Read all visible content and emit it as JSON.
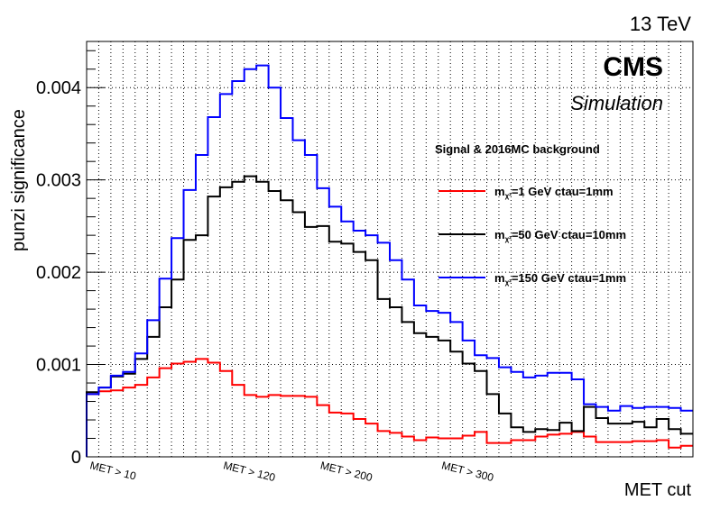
{
  "chart_data": {
    "type": "line",
    "step": true,
    "energy_label": "13 TeV",
    "cms_label": "CMS",
    "simulation_label": "Simulation",
    "xlabel": "MET cut",
    "ylabel": "punzi significance",
    "ylim": [
      0,
      0.0045
    ],
    "yticks": [
      {
        "value": 0,
        "label": "0"
      },
      {
        "value": 0.001,
        "label": "0.001"
      },
      {
        "value": 0.002,
        "label": "0.002"
      },
      {
        "value": 0.003,
        "label": "0.003"
      },
      {
        "value": 0.004,
        "label": "0.004"
      }
    ],
    "bin_count": 50,
    "x_category_labels": [
      {
        "bin": 0,
        "label": "MET > 10"
      },
      {
        "bin": 11,
        "label": "MET > 120"
      },
      {
        "bin": 19,
        "label": "MET > 200"
      },
      {
        "bin": 29,
        "label": "MET > 300"
      }
    ],
    "grid": true,
    "legend_header": "Signal & 2016MC background",
    "legend_position": "top-right",
    "series": [
      {
        "name_main": "m",
        "name_sub": "χ²",
        "name_rest": "=1 GeV ctau=1mm",
        "color": "#ff0000",
        "values": [
          0.00068,
          0.00071,
          0.00072,
          0.00075,
          0.00078,
          0.00086,
          0.00096,
          0.00101,
          0.00103,
          0.00106,
          0.00102,
          0.00093,
          0.00078,
          0.00067,
          0.00065,
          0.00067,
          0.00066,
          0.00066,
          0.00065,
          0.00056,
          0.00048,
          0.00047,
          0.00041,
          0.00036,
          0.00028,
          0.00026,
          0.00022,
          0.00018,
          0.00021,
          0.0002,
          0.0002,
          0.00023,
          0.00027,
          0.00015,
          0.00015,
          0.00018,
          0.00018,
          0.00022,
          0.00024,
          0.00025,
          0.00027,
          0.00022,
          0.00016,
          0.00016,
          0.00016,
          0.00017,
          0.00017,
          0.00018,
          0.0001,
          0.00012
        ]
      },
      {
        "name_main": "m",
        "name_sub": "χ²",
        "name_rest": "=50 GeV ctau=10mm",
        "color": "#000000",
        "values": [
          0.0007,
          0.00075,
          0.00087,
          0.0009,
          0.00106,
          0.0013,
          0.00162,
          0.00192,
          0.00235,
          0.0024,
          0.00282,
          0.00292,
          0.00298,
          0.00304,
          0.00298,
          0.00288,
          0.00278,
          0.00265,
          0.00249,
          0.0025,
          0.00233,
          0.00231,
          0.00222,
          0.00213,
          0.00171,
          0.00162,
          0.00146,
          0.00134,
          0.0013,
          0.00126,
          0.00114,
          0.00101,
          0.00093,
          0.00068,
          0.00047,
          0.00032,
          0.00027,
          0.0003,
          0.00029,
          0.00037,
          0.00028,
          0.00054,
          0.00042,
          0.00036,
          0.00036,
          0.00038,
          0.00032,
          0.00041,
          0.0003,
          0.00025
        ]
      },
      {
        "name_main": "m",
        "name_sub": "χ²",
        "name_rest": "=150 GeV ctau=1mm",
        "color": "#0000ff",
        "values": [
          0.00068,
          0.00075,
          0.00088,
          0.00092,
          0.00112,
          0.00148,
          0.00193,
          0.00237,
          0.00289,
          0.00327,
          0.00368,
          0.00393,
          0.00407,
          0.0042,
          0.00424,
          0.004,
          0.00367,
          0.00343,
          0.00327,
          0.00291,
          0.00271,
          0.00255,
          0.00245,
          0.0024,
          0.00232,
          0.00213,
          0.00192,
          0.00164,
          0.00158,
          0.00156,
          0.00146,
          0.00126,
          0.0011,
          0.00107,
          0.00097,
          0.00092,
          0.00086,
          0.00088,
          0.00091,
          0.00091,
          0.00084,
          0.00057,
          0.00054,
          0.0005,
          0.00055,
          0.00053,
          0.00054,
          0.00054,
          0.00053,
          0.0005
        ]
      }
    ]
  }
}
